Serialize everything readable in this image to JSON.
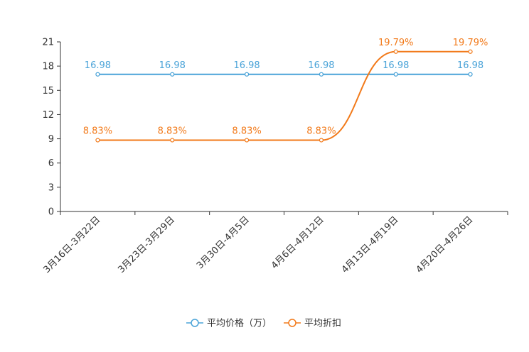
{
  "chart_data": {
    "type": "line",
    "categories": [
      "3月16日-3月22日",
      "3月23日-3月29日",
      "3月30日-4月5日",
      "4月6日-4月12日",
      "4月13日-4月19日",
      "4月20日-4月26日"
    ],
    "series": [
      {
        "name": "平均价格（万）",
        "color": "#4aa3d8",
        "values": [
          16.98,
          16.98,
          16.98,
          16.98,
          16.98,
          16.98
        ],
        "labels": [
          "16.98",
          "16.98",
          "16.98",
          "16.98",
          "16.98",
          "16.98"
        ],
        "smooth": false
      },
      {
        "name": "平均折扣",
        "color": "#f27a1a",
        "values": [
          8.83,
          8.83,
          8.83,
          8.83,
          19.79,
          19.79
        ],
        "labels": [
          "8.83%",
          "8.83%",
          "8.83%",
          "8.83%",
          "19.79%",
          "19.79%"
        ],
        "smooth": true
      }
    ],
    "yticks": [
      "0",
      "3",
      "6",
      "9",
      "12",
      "15",
      "18",
      "21"
    ],
    "ylim": [
      0,
      21
    ],
    "grid": false,
    "legend_position": "bottom-center"
  }
}
